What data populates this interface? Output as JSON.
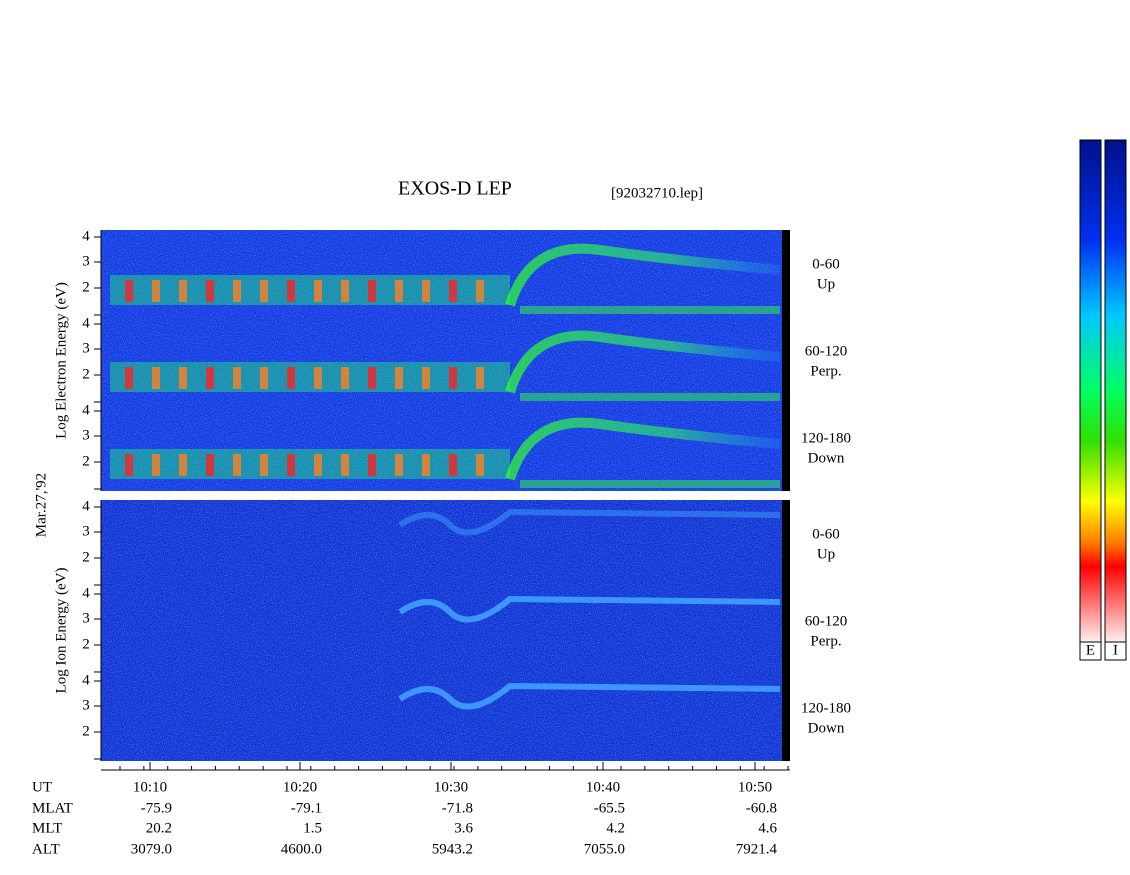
{
  "header": {
    "title": "EXOS-D LEP",
    "file": "[92032710.lep]"
  },
  "date": "Mar.27,'92",
  "panels": {
    "electron": {
      "axis_label": "Log Electron Energy (eV)",
      "rows": [
        {
          "angle": "0-60",
          "direction": "Up",
          "ticks": [
            "4",
            "3",
            "2"
          ]
        },
        {
          "angle": "60-120",
          "direction": "Perp.",
          "ticks": [
            "4",
            "3",
            "2"
          ]
        },
        {
          "angle": "120-180",
          "direction": "Down",
          "ticks": [
            "4",
            "3",
            "2"
          ]
        }
      ]
    },
    "ion": {
      "axis_label": "Log Ion Energy (eV)",
      "rows": [
        {
          "angle": "0-60",
          "direction": "Up",
          "ticks": [
            "4",
            "3",
            "2"
          ]
        },
        {
          "angle": "60-120",
          "direction": "Perp.",
          "ticks": [
            "4",
            "3",
            "2"
          ]
        },
        {
          "angle": "120-180",
          "direction": "Down",
          "ticks": [
            "4",
            "3",
            "2"
          ]
        }
      ]
    }
  },
  "footer": {
    "row_labels": [
      "UT",
      "MLAT",
      "MLT",
      "ALT"
    ],
    "columns": [
      [
        "10:10",
        "-75.9",
        "20.2",
        "3079.0"
      ],
      [
        "10:20",
        "-79.1",
        "1.5",
        "4600.0"
      ],
      [
        "10:30",
        "-71.8",
        "3.6",
        "5943.2"
      ],
      [
        "10:40",
        "-65.5",
        "4.2",
        "7055.0"
      ],
      [
        "10:50",
        "-60.8",
        "4.6",
        "7921.4"
      ]
    ]
  },
  "colorbars": [
    "E",
    "I"
  ]
}
